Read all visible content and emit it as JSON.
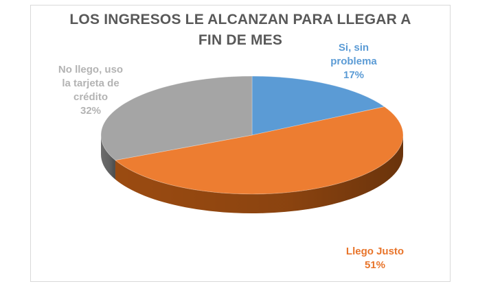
{
  "chart_data": {
    "type": "pie",
    "title_lines": [
      "LOS INGRESOS LE ALCANZAN PARA LLEGAR A",
      "FIN DE MES"
    ],
    "slices": [
      {
        "label_lines": [
          "Si, sin",
          "problema"
        ],
        "value": 17,
        "value_label": "17%",
        "color": "#5b9bd5",
        "side_color": "#3f74a6"
      },
      {
        "label_lines": [
          "Llego Justo"
        ],
        "value": 51,
        "value_label": "51%",
        "color": "#ed7d31",
        "side_color": "#a34f12"
      },
      {
        "label_lines": [
          "No llego, uso",
          "la tarjeta de",
          "crédito"
        ],
        "value": 32,
        "value_label": "32%",
        "color": "#a5a5a5",
        "side_color": "#727272"
      }
    ],
    "start_angle_deg": 0,
    "direction": "clockwise",
    "label_colors": {
      "slice-0": "#5b9bd5",
      "slice-1": "#e8742a",
      "slice-2": "#b3b3b3"
    },
    "legend": "none"
  }
}
